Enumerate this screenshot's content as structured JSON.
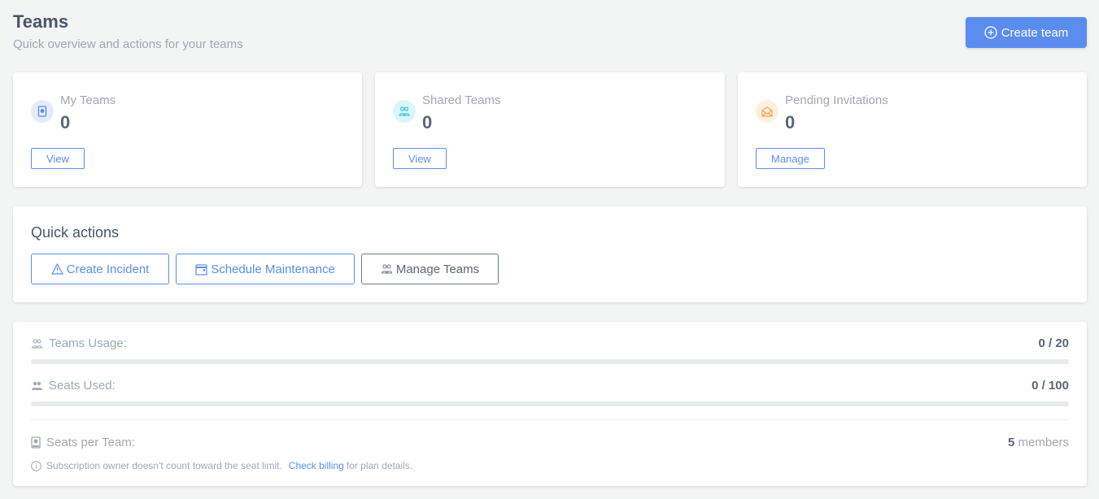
{
  "header": {
    "title": "Teams",
    "subtitle": "Quick overview and actions for your teams",
    "create_label": "Create team"
  },
  "stats": [
    {
      "label": "My Teams",
      "value": "0",
      "button": "View",
      "icon": "badge-icon",
      "icon_color": "#5b8def",
      "icon_bg": "#e4ecfb"
    },
    {
      "label": "Shared Teams",
      "value": "0",
      "button": "View",
      "icon": "users-icon",
      "icon_color": "#3cc8dc",
      "icon_bg": "#d9f6fa"
    },
    {
      "label": "Pending Invitations",
      "value": "0",
      "button": "Manage",
      "icon": "envelope-open-icon",
      "icon_color": "#f5a54a",
      "icon_bg": "#fdf0df"
    }
  ],
  "quick_actions": {
    "title": "Quick actions",
    "buttons": [
      "Create Incident",
      "Schedule Maintenance",
      "Manage Teams"
    ]
  },
  "usage": {
    "teams_label": "Teams Usage:",
    "teams_value": "0 / 20",
    "teams_percent": 0,
    "seats_label": "Seats Used:",
    "seats_value": "0 / 100",
    "seats_percent": 0,
    "per_team_label": "Seats per Team:",
    "per_team_number": "5",
    "per_team_unit": "members",
    "note_text": "Subscription owner doesn't count toward the seat limit.",
    "note_link": "Check billing",
    "note_suffix": "for plan details."
  }
}
